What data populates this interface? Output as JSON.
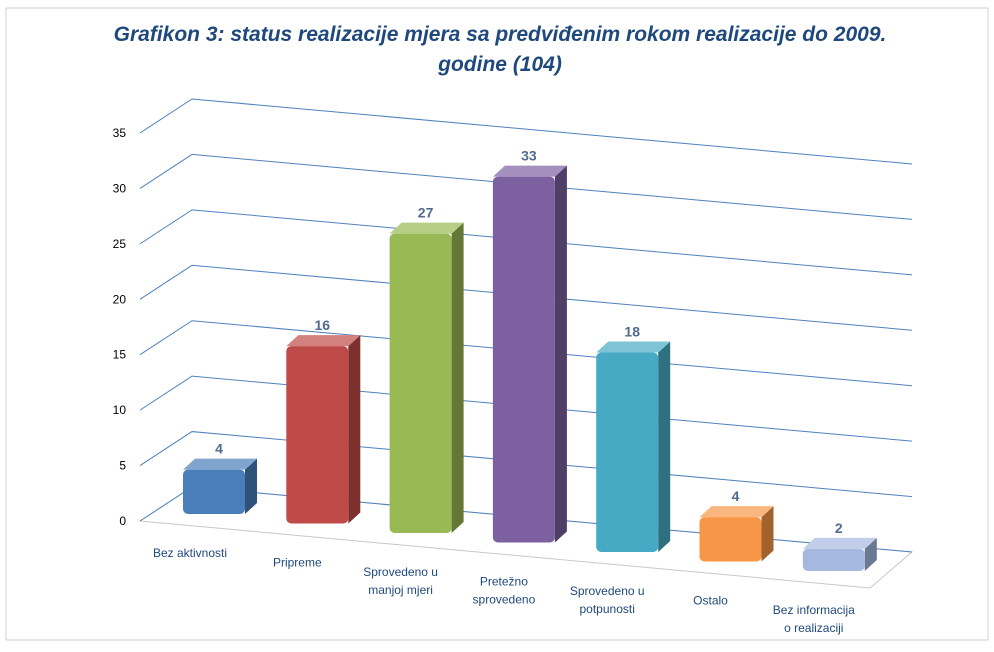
{
  "chart_data": {
    "type": "bar3d",
    "title": "Grafikon 3: status realizacije mjera sa  predviđenim rokom realizacije do 2009. godine (104)",
    "categories": [
      "Bez aktivnosti",
      "Pripreme",
      "Sprovedeno u\nmanjoj mjeri",
      "Pretežno\nsprovedeno",
      "Sprovedeno u\npotpunosti",
      "Ostalo",
      "Bez informacija\no realizaciji"
    ],
    "values": [
      4,
      16,
      27,
      33,
      18,
      4,
      2
    ],
    "colors": [
      "#4a7ebb",
      "#be4b48",
      "#98b954",
      "#7d60a0",
      "#46aac5",
      "#f79646",
      "#a5b9e0"
    ],
    "ylim": [
      0,
      35
    ],
    "yticks": [
      0,
      5,
      10,
      15,
      20,
      25,
      30,
      35
    ],
    "grid": true
  }
}
